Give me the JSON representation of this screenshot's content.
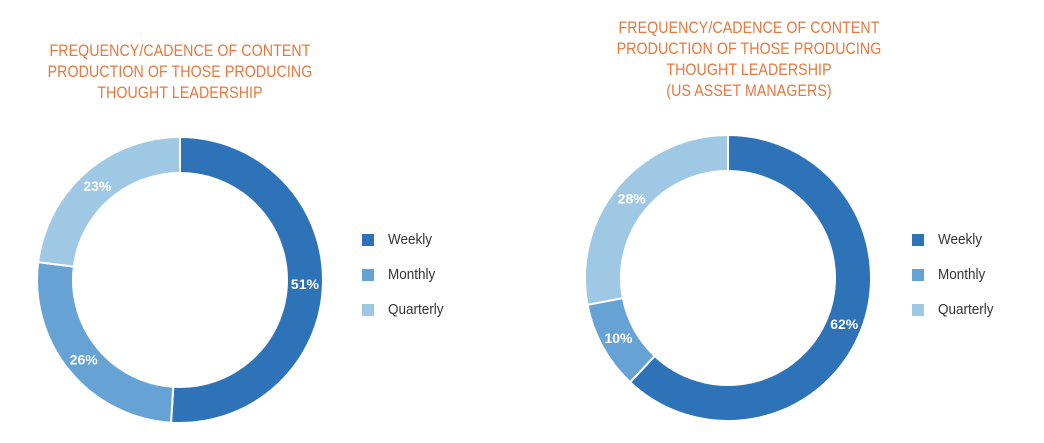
{
  "chart_data": [
    {
      "type": "pie",
      "title_lines": [
        "FREQUENCY/CADENCE OF CONTENT",
        "PRODUCTION OF THOSE PRODUCING",
        "THOUGHT LEADERSHIP"
      ],
      "categories": [
        "Weekly",
        "Monthly",
        "Quarterly"
      ],
      "values": [
        51,
        26,
        23
      ],
      "labels": [
        "51%",
        "26%",
        "23%"
      ],
      "colors": [
        "#2e72b8",
        "#66a3d4",
        "#9fc8e5"
      ],
      "legend_position": "right"
    },
    {
      "type": "pie",
      "title_lines": [
        "FREQUENCY/CADENCE OF CONTENT",
        "PRODUCTION OF THOSE PRODUCING",
        "THOUGHT LEADERSHIP",
        "(US ASSET MANAGERS)"
      ],
      "categories": [
        "Weekly",
        "Monthly",
        "Quarterly"
      ],
      "values": [
        62,
        10,
        28
      ],
      "labels": [
        "62%",
        "10%",
        "28%"
      ],
      "colors": [
        "#2e72b8",
        "#66a3d4",
        "#9fc8e5"
      ],
      "legend_position": "right"
    }
  ]
}
